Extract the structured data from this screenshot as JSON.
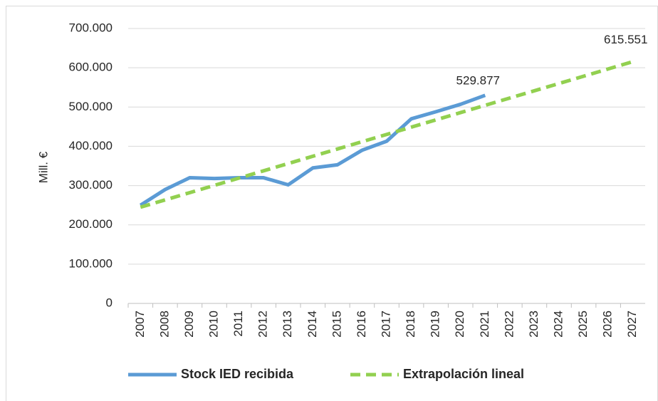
{
  "chart_data": {
    "type": "line",
    "y_label": "Mill. €",
    "categories": [
      "2007",
      "2008",
      "2009",
      "2010",
      "2011",
      "2012",
      "2013",
      "2014",
      "2015",
      "2016",
      "2017",
      "2018",
      "2019",
      "2020",
      "2021",
      "2022",
      "2023",
      "2024",
      "2025",
      "2026",
      "2027"
    ],
    "series": [
      {
        "name": "Stock IED recibida",
        "color": "#5b9bd5",
        "dash": false,
        "values": [
          250000,
          290000,
          320000,
          318000,
          320000,
          320000,
          302000,
          345000,
          353000,
          390000,
          413000,
          470000,
          488000,
          507000,
          529877,
          null,
          null,
          null,
          null,
          null,
          null
        ],
        "value_labels": [
          null,
          null,
          null,
          null,
          null,
          null,
          null,
          null,
          null,
          null,
          null,
          null,
          null,
          null,
          "529.877",
          null,
          null,
          null,
          null,
          null,
          null
        ]
      },
      {
        "name": "Extrapolación lineal",
        "color": "#92d050",
        "dash": true,
        "values": [
          245000,
          263528,
          282055,
          300583,
          319110,
          337638,
          356165,
          374693,
          393220,
          411748,
          430276,
          448803,
          467331,
          485858,
          504386,
          522913,
          541441,
          559968,
          578496,
          597023,
          615551
        ],
        "value_labels": [
          null,
          null,
          null,
          null,
          null,
          null,
          null,
          null,
          null,
          null,
          null,
          null,
          null,
          null,
          null,
          null,
          null,
          null,
          null,
          null,
          "615.551"
        ]
      }
    ],
    "ylim": [
      0,
      700000
    ],
    "yticks": [
      0,
      {
        "value": 100000,
        "label": "100.000"
      },
      {
        "value": 200000,
        "label": "200.000"
      },
      {
        "value": 300000,
        "label": "300.000"
      },
      {
        "value": 400000,
        "label": "400.000"
      },
      {
        "value": 500000,
        "label": "500.000"
      },
      {
        "value": 600000,
        "label": "600.000"
      },
      {
        "value": 700000,
        "label": "700.000"
      }
    ],
    "grid": true,
    "legend": "bottom"
  }
}
